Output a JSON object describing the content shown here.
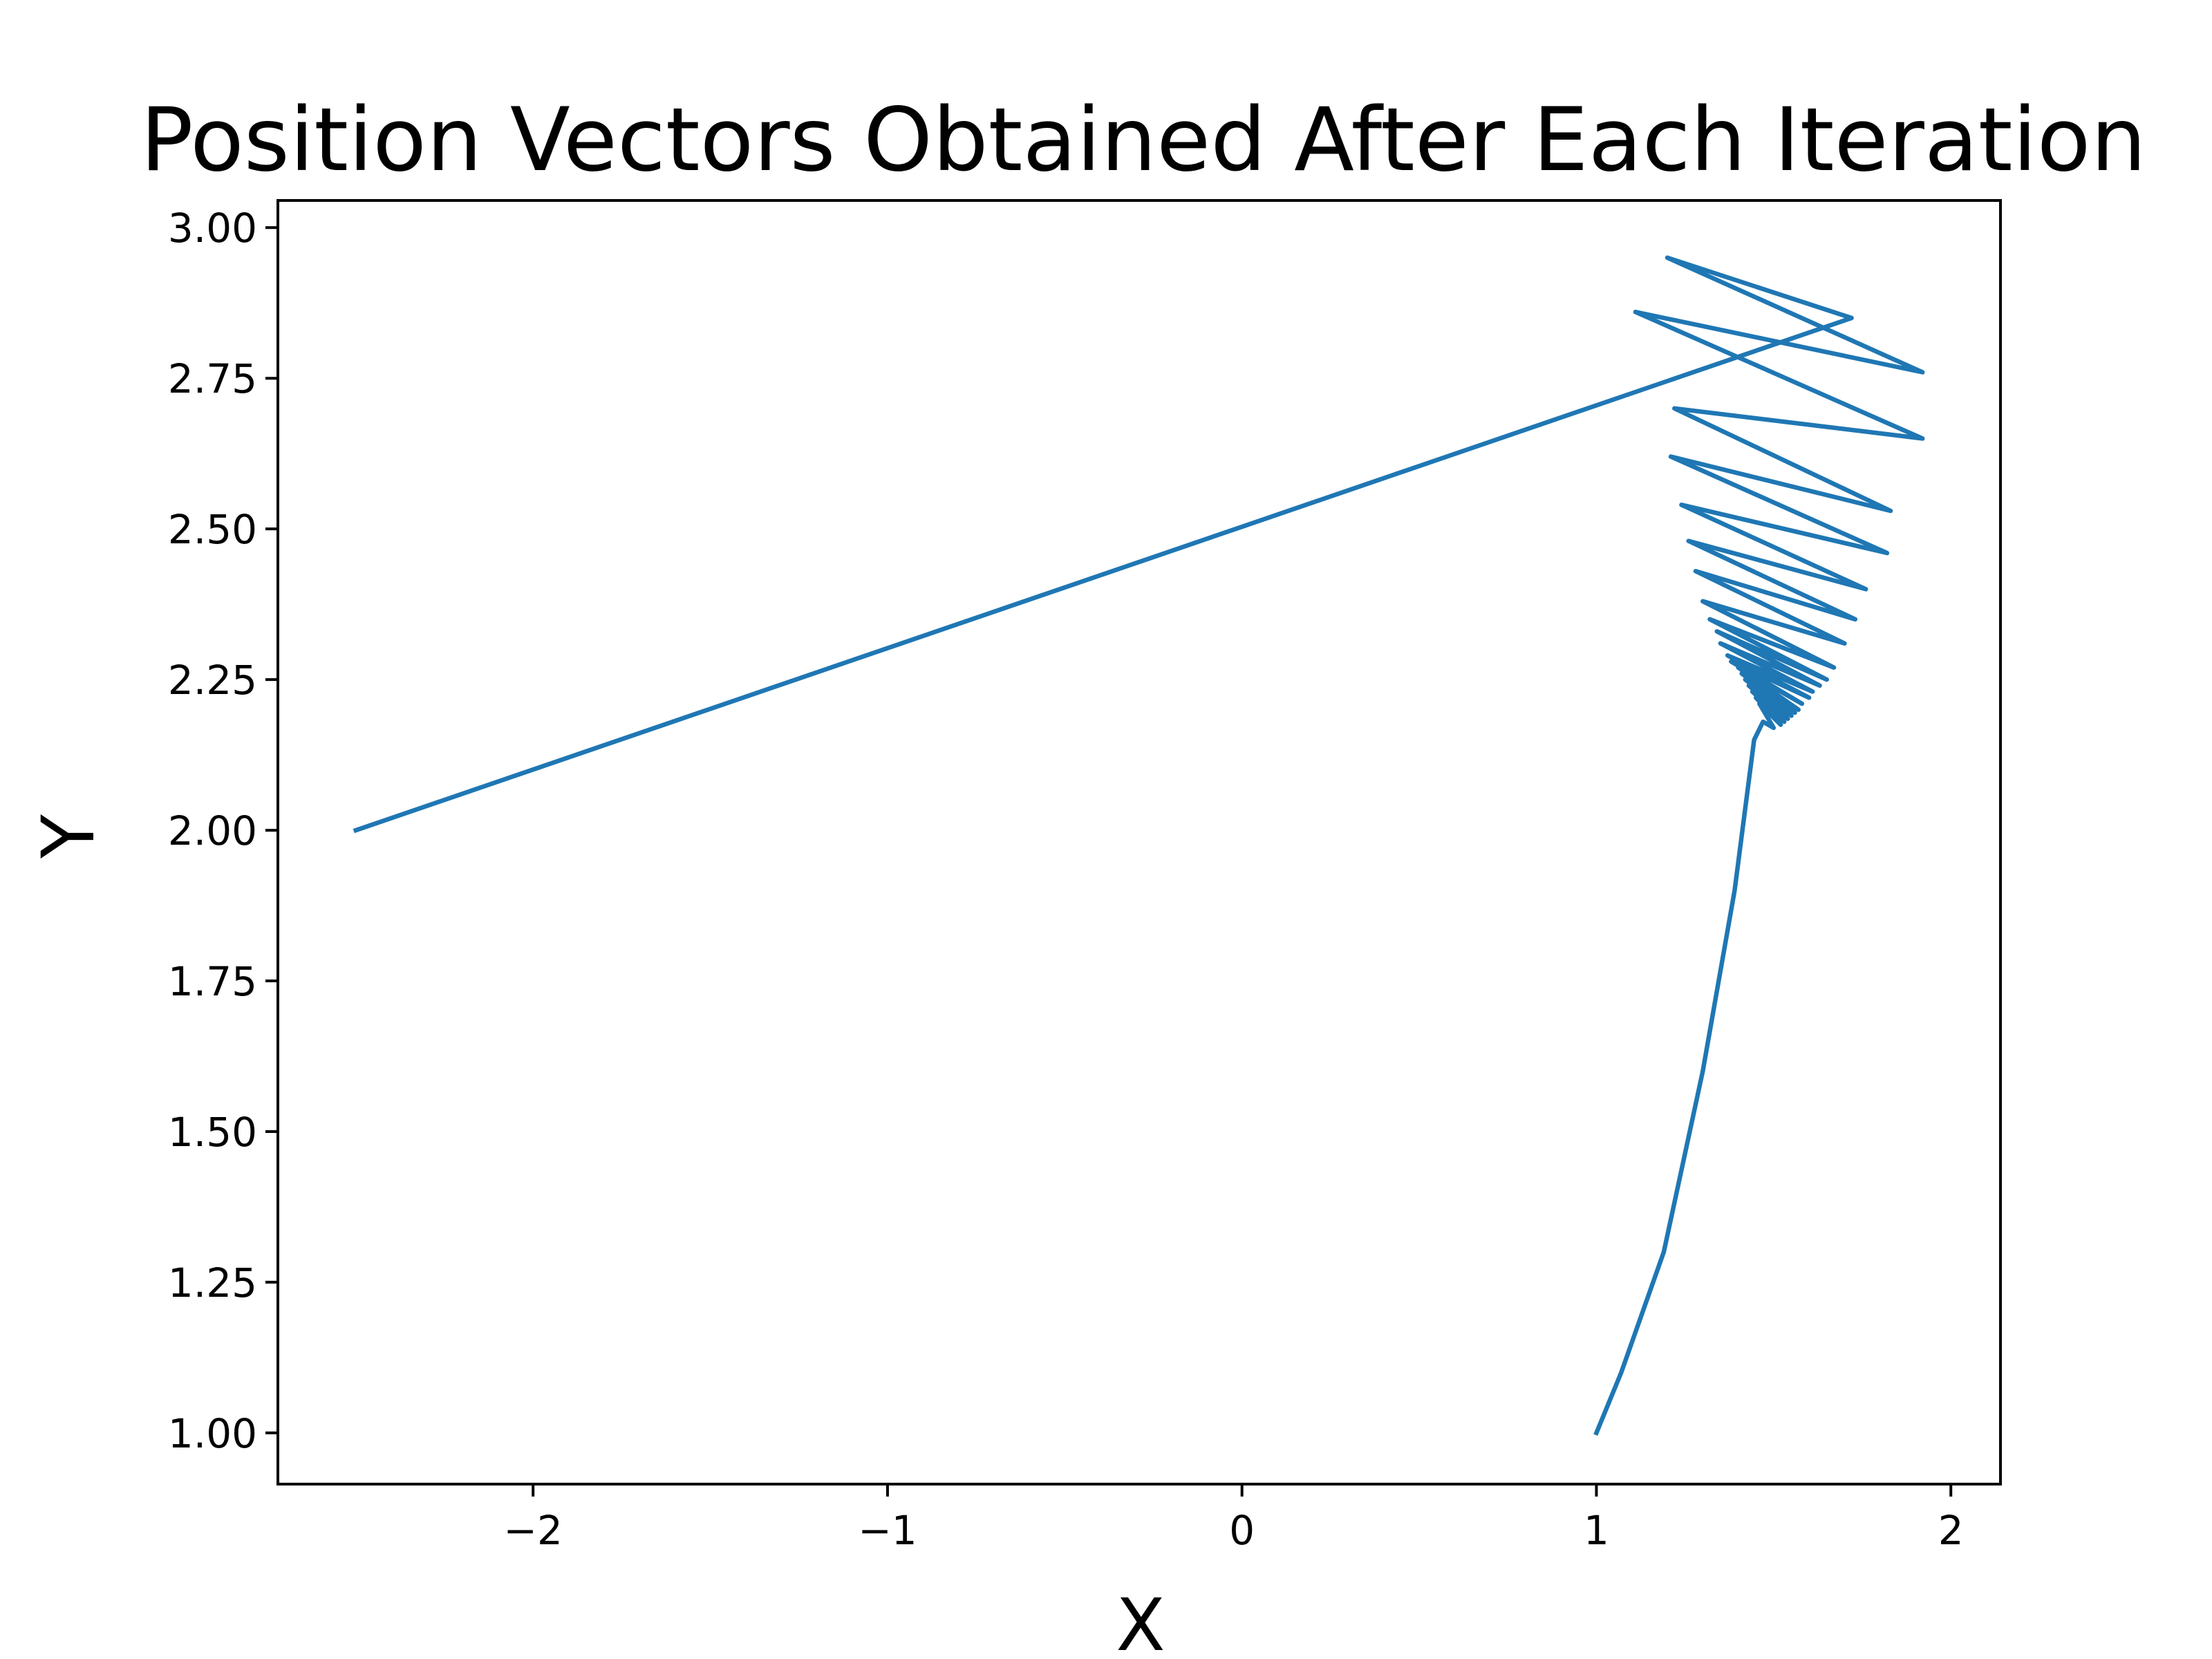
{
  "chart_data": {
    "type": "line",
    "title": "Position Vectors Obtained After Each Iteration",
    "xlabel": "X",
    "ylabel": "Y",
    "xlim": [
      -2.72,
      2.14
    ],
    "ylim": [
      0.915,
      3.045
    ],
    "xticks": [
      -2,
      -1,
      0,
      1,
      2
    ],
    "xtick_labels": [
      "−2",
      "−1",
      "0",
      "1",
      "2"
    ],
    "yticks": [
      1.0,
      1.25,
      1.5,
      1.75,
      2.0,
      2.25,
      2.5,
      2.75,
      3.0
    ],
    "ytick_labels": [
      "1.00",
      "1.25",
      "1.50",
      "1.75",
      "2.00",
      "2.25",
      "2.50",
      "2.75",
      "3.00"
    ],
    "grid": false,
    "colors": {
      "series": "#1f77b4",
      "axes": "#000000",
      "background": "#ffffff"
    },
    "series": [
      {
        "x": [
          -2.5,
          1.72,
          1.2,
          1.92,
          1.11,
          1.92,
          1.22,
          1.83,
          1.21,
          1.82,
          1.24,
          1.76,
          1.26,
          1.73,
          1.28,
          1.7,
          1.3,
          1.67,
          1.32,
          1.65,
          1.34,
          1.63,
          1.35,
          1.61,
          1.37,
          1.6,
          1.38,
          1.58,
          1.4,
          1.57,
          1.41,
          1.56,
          1.42,
          1.55,
          1.43,
          1.54,
          1.44,
          1.53,
          1.45,
          1.52,
          1.46,
          1.5,
          1.47,
          1.445,
          1.39,
          1.3,
          1.19,
          1.07,
          1.0
        ],
        "y": [
          2.0,
          2.85,
          2.95,
          2.76,
          2.86,
          2.65,
          2.7,
          2.53,
          2.62,
          2.46,
          2.54,
          2.4,
          2.48,
          2.35,
          2.43,
          2.31,
          2.38,
          2.27,
          2.35,
          2.25,
          2.33,
          2.24,
          2.31,
          2.23,
          2.29,
          2.22,
          2.28,
          2.21,
          2.27,
          2.2,
          2.26,
          2.195,
          2.25,
          2.19,
          2.24,
          2.185,
          2.23,
          2.18,
          2.22,
          2.175,
          2.21,
          2.17,
          2.18,
          2.15,
          1.9,
          1.6,
          1.3,
          1.1,
          1.0
        ]
      }
    ]
  }
}
